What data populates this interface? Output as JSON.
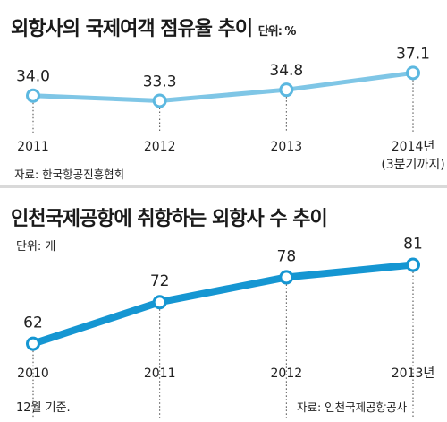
{
  "chart_data": [
    {
      "type": "line",
      "title": "외항사의 국제여객 점유율 추이",
      "unit": "단위: %",
      "categories": [
        "2011",
        "2012",
        "2013",
        "2014년"
      ],
      "category_sub": [
        "",
        "",
        "",
        "(3분기까지)"
      ],
      "values": [
        34.0,
        33.3,
        34.8,
        37.1
      ],
      "value_labels": [
        "34.0",
        "33.3",
        "34.8",
        "37.1"
      ],
      "source": "자료: 한국항공진흥협회",
      "ylim": [
        32.5,
        38
      ],
      "color": "#7fc6e6",
      "marker_stroke": "#5cb8e0"
    },
    {
      "type": "line",
      "title": "인천국제공항에 취항하는 외항사 수 추이",
      "unit": "단위: 개",
      "categories": [
        "2010",
        "2011",
        "2012",
        "2013년"
      ],
      "values": [
        62,
        72,
        78,
        81
      ],
      "value_labels": [
        "62",
        "72",
        "78",
        "81"
      ],
      "note": "12월 기준.",
      "source": "자료: 인천국제공항공사",
      "ylim": [
        55,
        85
      ],
      "color": "#1596d2",
      "marker_stroke": "#1596d2"
    }
  ]
}
